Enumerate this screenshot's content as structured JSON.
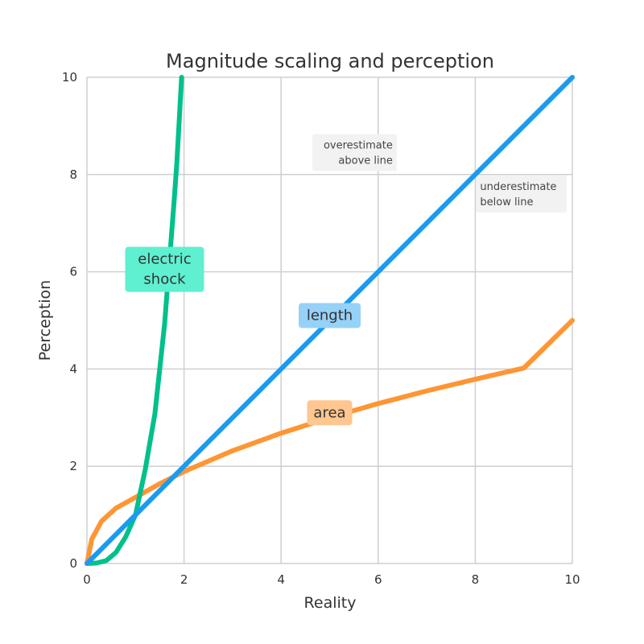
{
  "chart_data": {
    "type": "line",
    "title": "Magnitude scaling and perception",
    "xlabel": "Reality",
    "ylabel": "Perception",
    "xlim": [
      0,
      10
    ],
    "ylim": [
      0,
      10
    ],
    "xticks": [
      0,
      2,
      4,
      6,
      8,
      10
    ],
    "yticks": [
      0,
      2,
      4,
      6,
      8,
      10
    ],
    "grid": true,
    "series": [
      {
        "name": "electric shock",
        "color": "#00c08b",
        "x": [
          0,
          0.2,
          0.4,
          0.6,
          0.8,
          1.0,
          1.2,
          1.4,
          1.6,
          1.8,
          1.85,
          1.9,
          1.95
        ],
        "y": [
          0,
          0.01,
          0.06,
          0.23,
          0.55,
          1.0,
          1.93,
          3.08,
          4.93,
          7.5,
          8.22,
          9.1,
          10.0
        ]
      },
      {
        "name": "length",
        "color": "#1a9bf0",
        "x": [
          0,
          10
        ],
        "y": [
          0,
          10
        ]
      },
      {
        "name": "area",
        "color": "#ff9533",
        "x": [
          0,
          0.1,
          0.3,
          0.6,
          1,
          1.5,
          2,
          3,
          4,
          5,
          6,
          7,
          8,
          9,
          10
        ],
        "y": [
          0,
          0.5,
          0.87,
          1.14,
          1.36,
          1.64,
          1.89,
          2.32,
          2.68,
          3.0,
          3.29,
          3.55,
          3.79,
          4.02,
          5.0
        ]
      }
    ],
    "series_labels": [
      {
        "text_lines": [
          "electric",
          "shock"
        ],
        "x": 1.6,
        "y": 6.05,
        "bg": "#5ef0d0"
      },
      {
        "text_lines": [
          "length"
        ],
        "x": 5.0,
        "y": 5.1,
        "bg": "#96d1f8"
      },
      {
        "text_lines": [
          "area"
        ],
        "x": 5.0,
        "y": 3.1,
        "bg": "#ffc68f"
      }
    ],
    "annotations": [
      {
        "text_lines": [
          "overestimate",
          "above line"
        ],
        "x": 6.3,
        "y": 8.45,
        "anchor": "end"
      },
      {
        "text_lines": [
          "underestimate",
          "below line"
        ],
        "x": 8.1,
        "y": 7.6,
        "anchor": "start"
      }
    ]
  }
}
